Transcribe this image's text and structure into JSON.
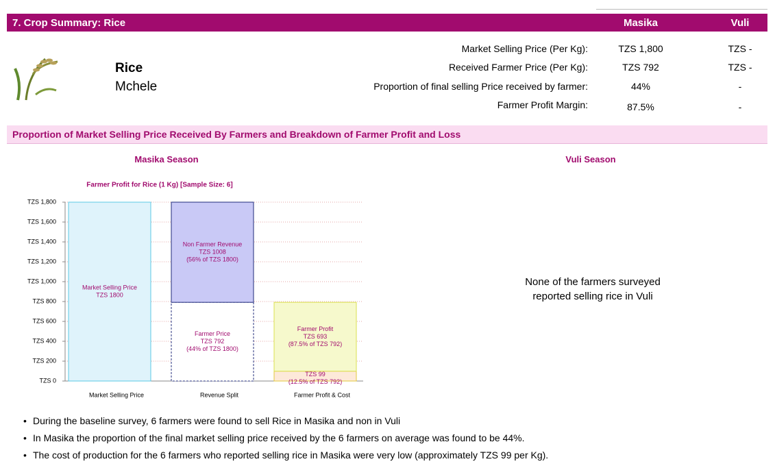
{
  "header": {
    "title": "7. Crop Summary: Rice",
    "columns": [
      "Masika",
      "Vuli"
    ]
  },
  "crop": {
    "name": "Rice",
    "local_name": "Mchele"
  },
  "metrics": [
    {
      "label": "Market Selling Price (Per Kg):",
      "masika": "TZS 1,800",
      "vuli": "TZS -"
    },
    {
      "label": "Received Farmer Price (Per Kg):",
      "masika": "TZS 792",
      "vuli": "TZS -"
    },
    {
      "label": "Proportion of  final selling Price received by farmer:",
      "masika": "44%",
      "vuli": "-"
    },
    {
      "label": "Farmer Profit Margin:",
      "masika": "87.5%",
      "vuli": "-"
    }
  ],
  "band_title": "Proportion of Market Selling Price Received By Farmers and Breakdown of Farmer Profit and Loss",
  "seasons": [
    "Masika Season",
    "Vuli Season"
  ],
  "vuli_note": [
    "None of the farmers surveyed",
    "reported selling rice in Vuli"
  ],
  "chart_data": {
    "type": "bar",
    "stacked": true,
    "title": "Farmer Profit for Rice (1 Kg) [Sample Size: 6]",
    "categories": [
      "Market Selling Price",
      "Revenue Split",
      "Farmer Profit & Cost"
    ],
    "series": [
      {
        "name": "Market Selling Price",
        "color": "#dff3fb",
        "border": "#5bc8e6",
        "values": [
          1800,
          null,
          null
        ],
        "value_labels": [
          "TZS 1800",
          null,
          null
        ],
        "share_labels": [
          null,
          null,
          null
        ]
      },
      {
        "name": "Farmer Price",
        "color": "#ffffff",
        "border": "#1f2a7a",
        "dashed": true,
        "values": [
          null,
          792,
          null
        ],
        "value_labels": [
          null,
          "TZS 792",
          null
        ],
        "share_labels": [
          null,
          "(44% of TZS 1800)",
          null
        ]
      },
      {
        "name": "Non Farmer Revenue",
        "color": "#c9c9f6",
        "border": "#1f2a7a",
        "values": [
          null,
          1008,
          null
        ],
        "value_labels": [
          null,
          "TZS 1008",
          null
        ],
        "share_labels": [
          null,
          "(56% of TZS 1800)",
          null
        ]
      },
      {
        "name": "Farmer Cost",
        "color": "#fde9d9",
        "border": "#e3c93c",
        "values": [
          null,
          null,
          99
        ],
        "value_labels": [
          null,
          null,
          "TZS 99"
        ],
        "share_labels": [
          null,
          null,
          "(12.5% of TZS 792)"
        ]
      },
      {
        "name": "Farmer Profit",
        "color": "#f6f9cc",
        "border": "#dbe04f",
        "values": [
          null,
          null,
          693
        ],
        "value_labels": [
          null,
          null,
          "TZS 693"
        ],
        "share_labels": [
          null,
          null,
          "(87.5% of TZS 792)"
        ]
      }
    ],
    "ylim": [
      0,
      1800
    ],
    "yticks": [
      {
        "value": 0,
        "label": "TZS 0"
      },
      {
        "value": 200,
        "label": "TZS 200"
      },
      {
        "value": 400,
        "label": "TZS 400"
      },
      {
        "value": 600,
        "label": "TZS 600"
      },
      {
        "value": 800,
        "label": "TZS 800"
      },
      {
        "value": 1000,
        "label": "TZS 1,000"
      },
      {
        "value": 1200,
        "label": "TZS 1,200"
      },
      {
        "value": 1400,
        "label": "TZS 1,400"
      },
      {
        "value": 1600,
        "label": "TZS 1,600"
      },
      {
        "value": 1800,
        "label": "TZS 1,800"
      }
    ],
    "grid": true
  },
  "bullets": [
    "During the baseline survey, 6 farmers were found to sell Rice in Masika and non in Vuli",
    "In Masika the proportion of the final market selling price received by the 6 farmers on average was found to be 44%.",
    "The cost of production for the 6 farmers who reported selling rice in Masika were very low (approximately TZS 99 per Kg)."
  ]
}
